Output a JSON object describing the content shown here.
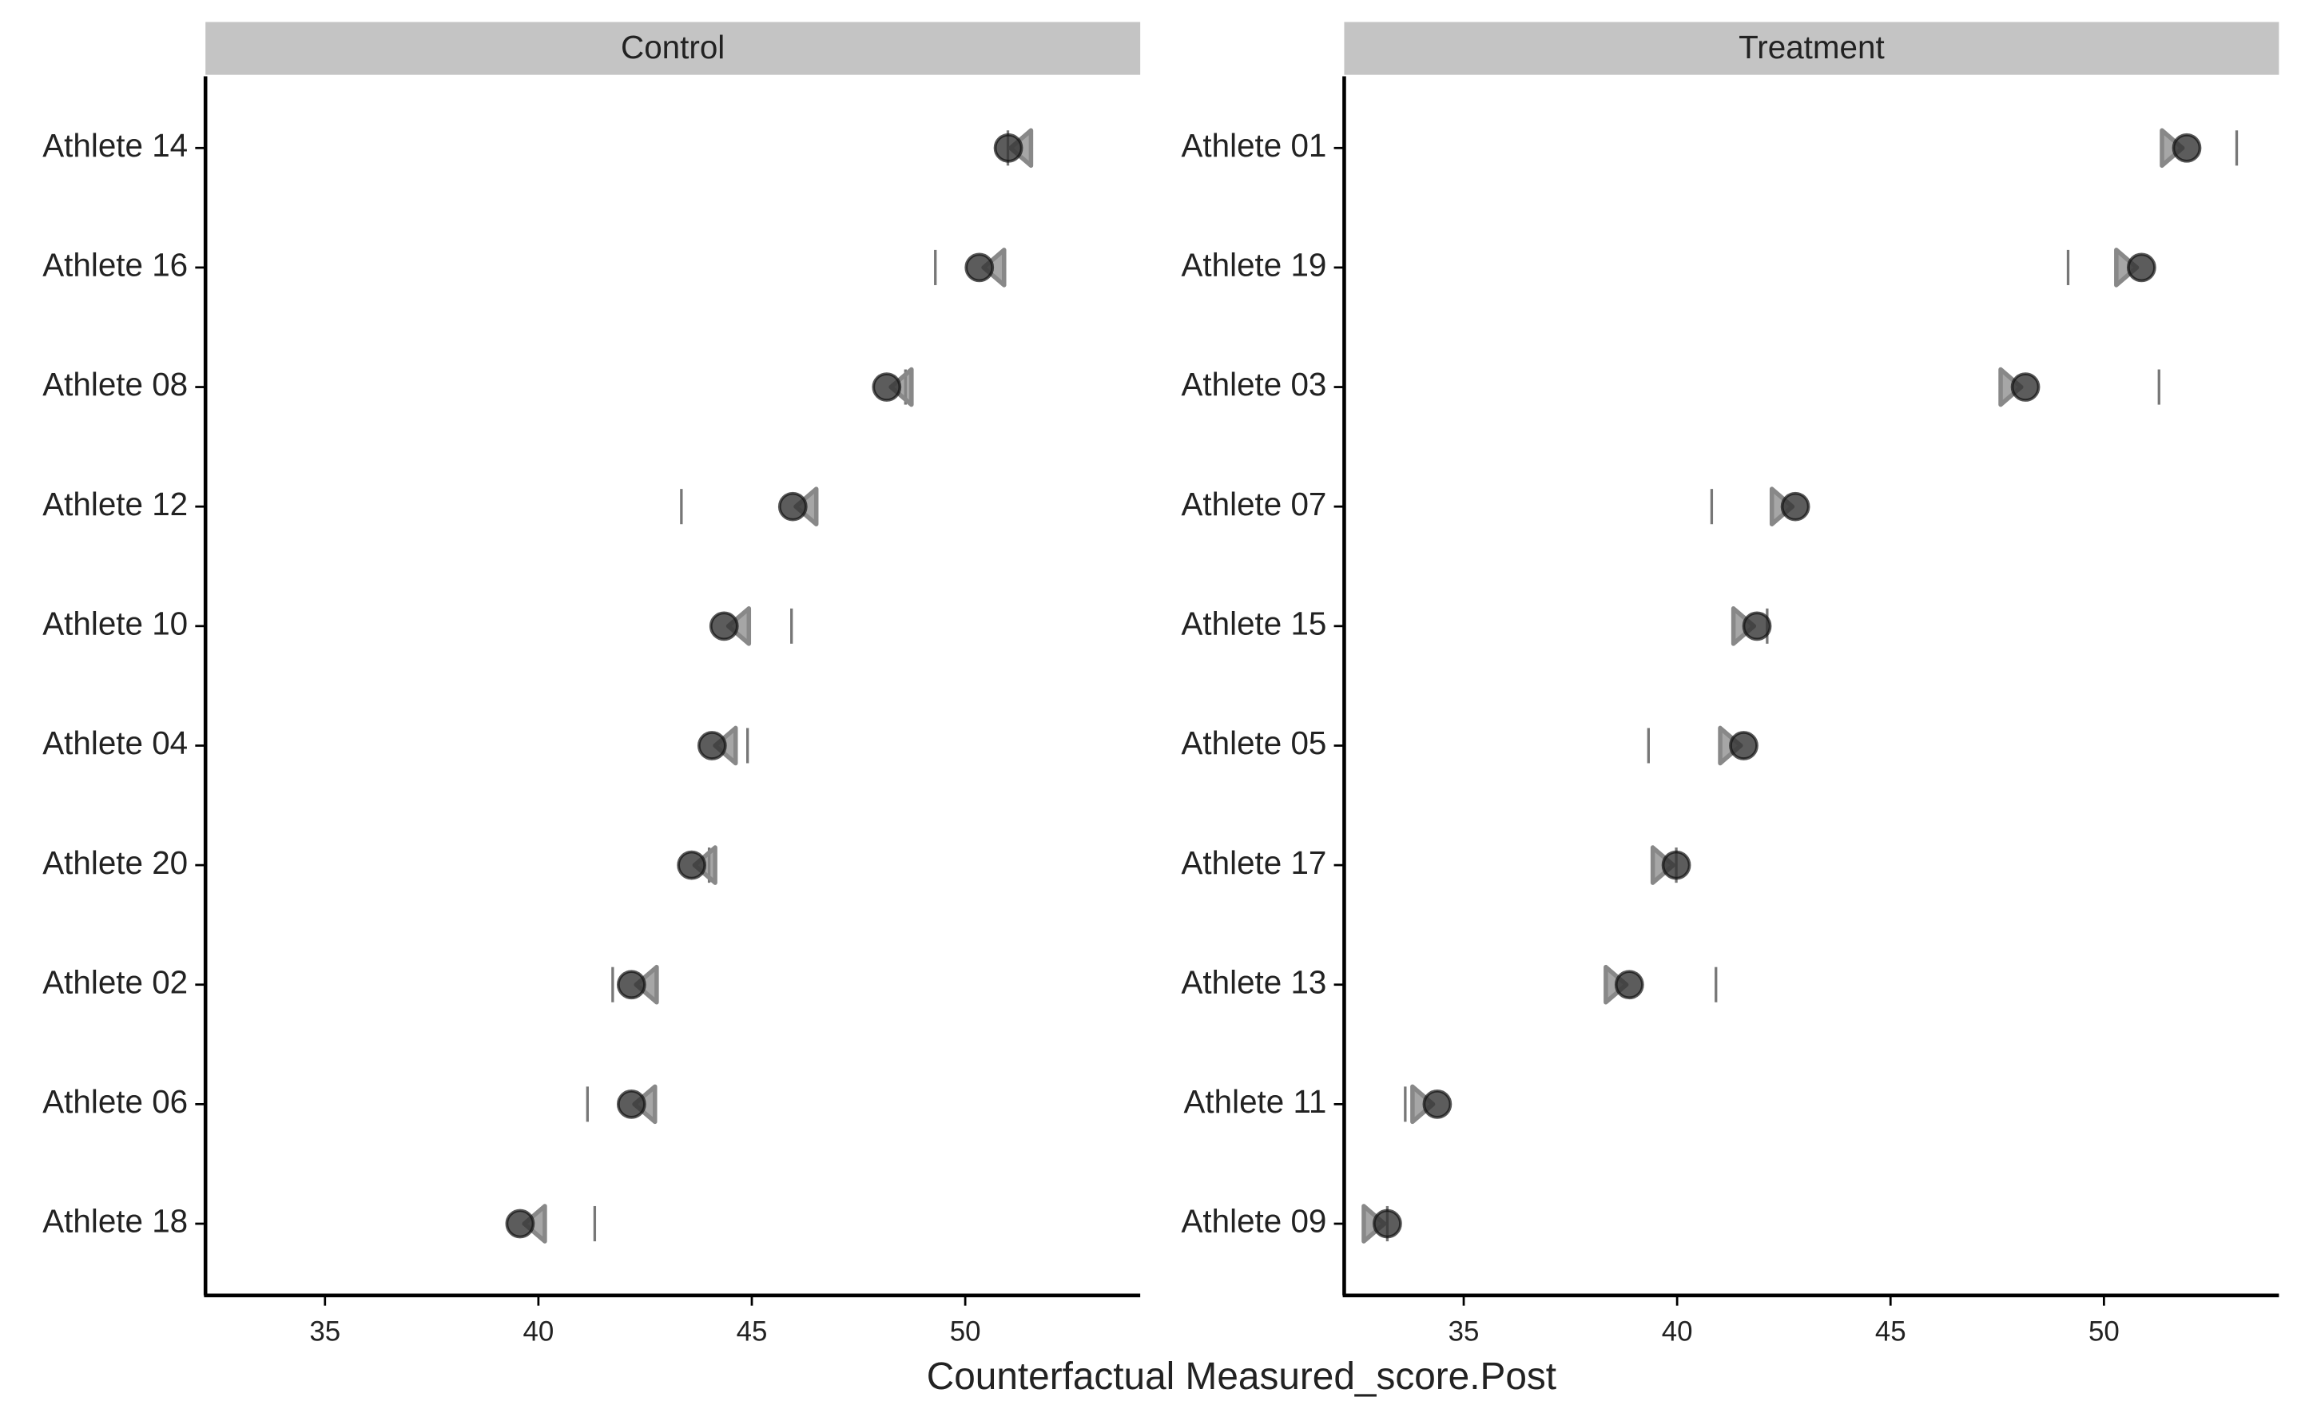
{
  "chart_data": [
    {
      "type": "dot",
      "title": "Control",
      "xlabel": "Counterfactual Measured_score.Post",
      "categories": [
        "Athlete 14",
        "Athlete 16",
        "Athlete 08",
        "Athlete 12",
        "Athlete 10",
        "Athlete 04",
        "Athlete 20",
        "Athlete 02",
        "Athlete 06",
        "Athlete 18"
      ],
      "series": [
        {
          "marker": "tick",
          "color": "#777777",
          "values": [
            51.0,
            49.3,
            48.6,
            43.35,
            45.93,
            44.9,
            44.0,
            41.74,
            41.15,
            41.32
          ]
        },
        {
          "marker": "triangle",
          "color": "#888888",
          "values": [
            51.3,
            50.67,
            48.5,
            46.27,
            44.69,
            44.38,
            43.9,
            42.53,
            42.49,
            39.91
          ]
        },
        {
          "marker": "circle",
          "color": "#333333",
          "values": [
            51.01,
            50.33,
            48.16,
            45.96,
            44.35,
            44.07,
            43.59,
            42.18,
            42.18,
            39.57
          ]
        }
      ],
      "xlim": [
        32.2,
        54.1
      ],
      "xticks": [
        35,
        40,
        45,
        50
      ]
    },
    {
      "type": "dot",
      "title": "Treatment",
      "categories": [
        "Athlete 01",
        "Athlete 19",
        "Athlete 03",
        "Athlete 07",
        "Athlete 15",
        "Athlete 05",
        "Athlete 17",
        "Athlete 13",
        "Athlete 11",
        "Athlete 09"
      ],
      "series": [
        {
          "marker": "tick",
          "color": "#777777",
          "values": [
            53.11,
            49.16,
            51.29,
            40.81,
            42.11,
            39.33,
            39.98,
            40.91,
            33.63,
            33.21
          ]
        },
        {
          "marker": "triangle",
          "color": "#888888",
          "values": [
            51.6,
            50.53,
            47.82,
            42.46,
            41.56,
            41.25,
            39.67,
            38.57,
            34.04,
            32.9
          ]
        },
        {
          "marker": "circle",
          "color": "#333333",
          "values": [
            51.94,
            50.88,
            48.16,
            42.77,
            41.87,
            41.56,
            39.98,
            38.88,
            34.38,
            33.21
          ]
        }
      ],
      "xlim": [
        32.2,
        54.1
      ],
      "xticks": [
        35,
        40,
        45,
        50
      ]
    }
  ]
}
